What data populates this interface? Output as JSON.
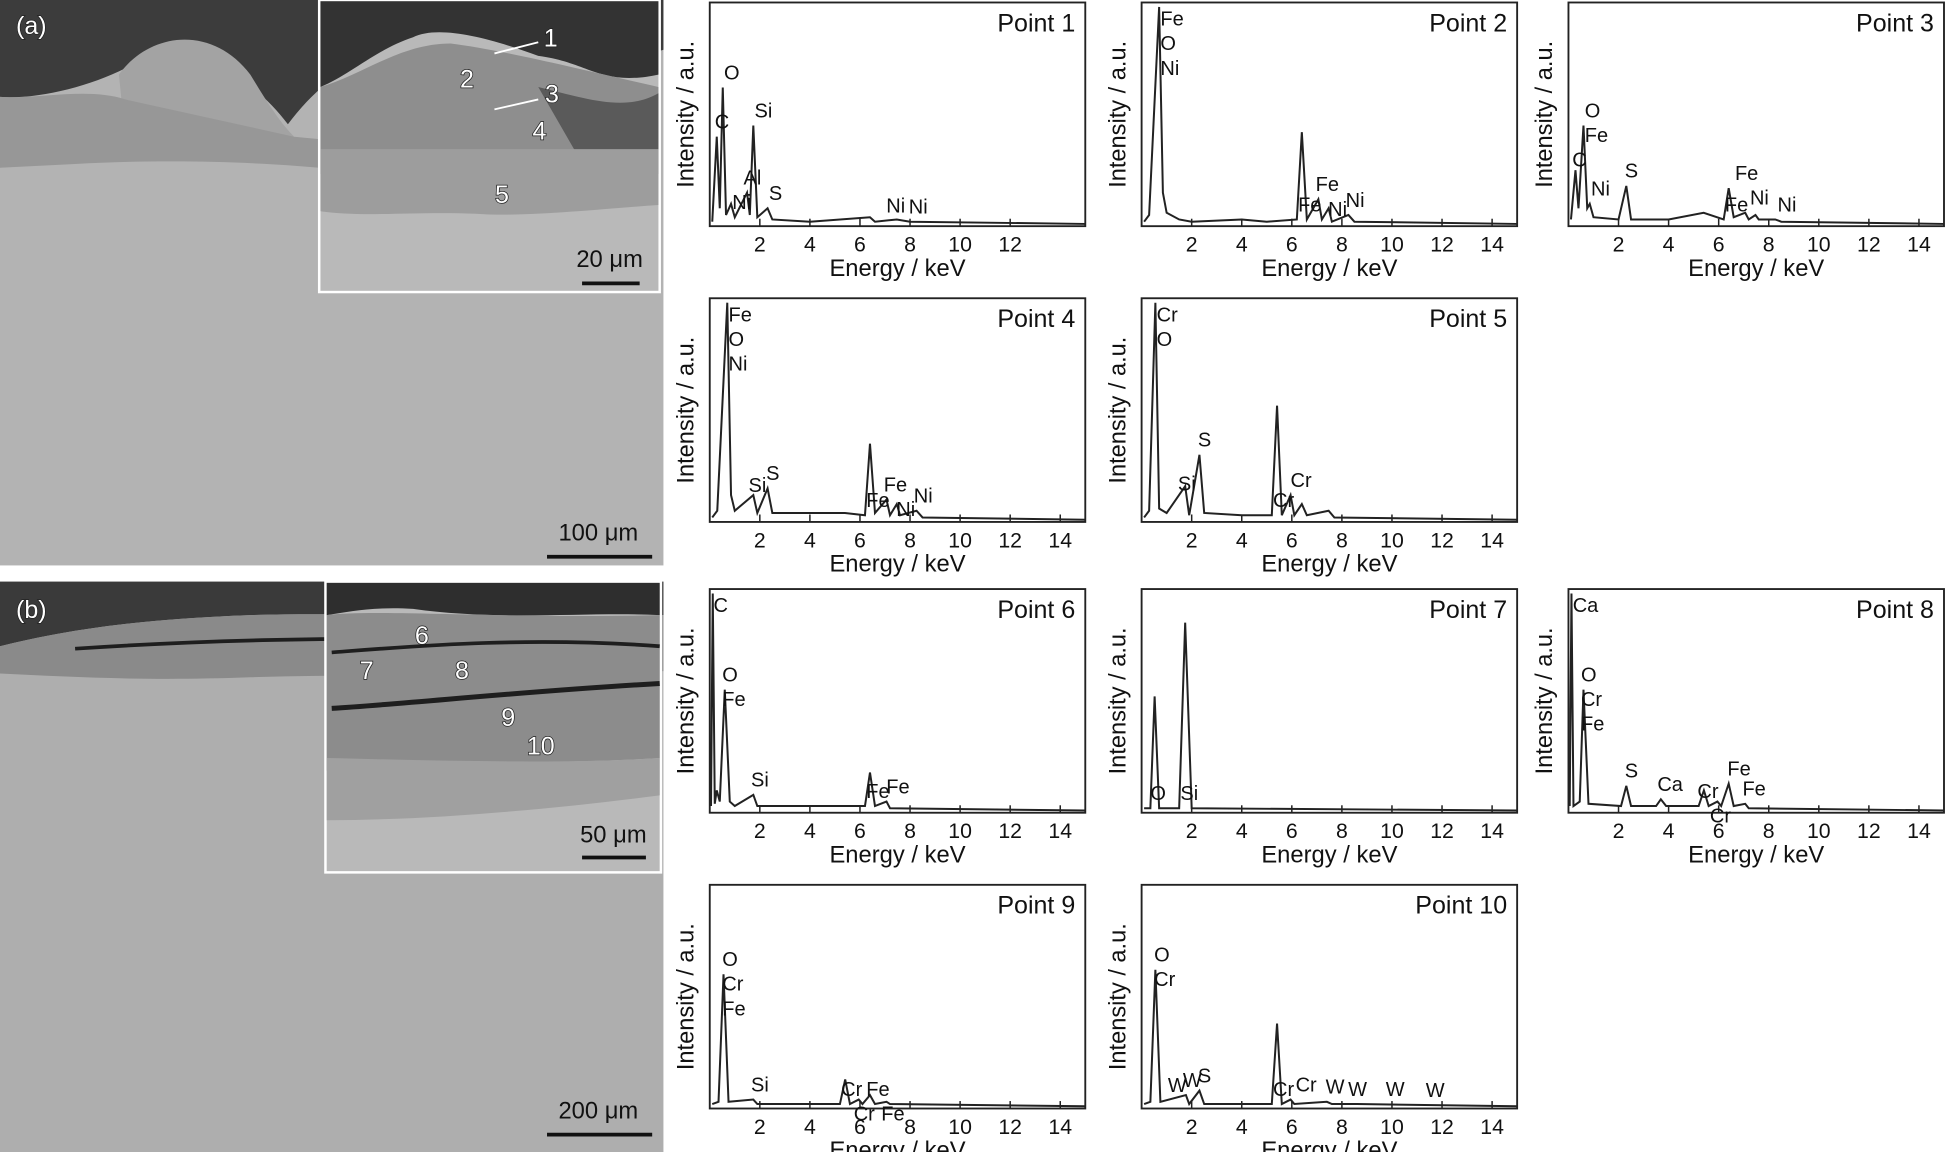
{
  "images": [
    {
      "panel": "(a)",
      "scale_bar": "100 μm",
      "inset_scale_bar": "20 μm",
      "markers": [
        "1",
        "2",
        "3",
        "4",
        "5"
      ]
    },
    {
      "panel": "(b)",
      "scale_bar": "200 μm",
      "inset_scale_bar": "50 μm",
      "markers": [
        "6",
        "7",
        "8",
        "9",
        "10"
      ]
    }
  ],
  "chart_data": [
    {
      "type": "line",
      "title": "Point 1",
      "x_label": "Energy / keV",
      "y_label": "Intensity / a.u.",
      "color": "#222222",
      "xlim": [
        0,
        15
      ],
      "xticks": [
        2,
        4,
        6,
        8,
        10,
        12
      ],
      "ylim": [
        0,
        100
      ],
      "x": [
        0.1,
        0.28,
        0.4,
        0.52,
        0.65,
        0.85,
        1.0,
        1.49,
        1.6,
        1.74,
        1.9,
        2.31,
        2.5,
        4,
        6.4,
        6.6,
        7.47,
        8,
        15
      ],
      "values": [
        2,
        40,
        8,
        62,
        5,
        10,
        4,
        15,
        5,
        45,
        4,
        8,
        3,
        2,
        4,
        2,
        3,
        2,
        1
      ],
      "annotations": [
        {
          "text": "O",
          "x": 0.52
        },
        {
          "text": "C",
          "x": 0.15
        },
        {
          "text": "Si",
          "x": 1.74
        },
        {
          "text": "Al",
          "x": 1.3
        },
        {
          "text": "Ni",
          "x": 0.85
        },
        {
          "text": "S",
          "x": 2.31
        },
        {
          "text": "Ni",
          "x": 7.0
        },
        {
          "text": "Ni",
          "x": 7.9
        }
      ]
    },
    {
      "type": "line",
      "title": "Point 2",
      "x_label": "Energy / keV",
      "y_label": "Intensity / a.u.",
      "color": "#222222",
      "xlim": [
        0,
        15
      ],
      "xticks": [
        2,
        4,
        6,
        8,
        10,
        12,
        14
      ],
      "ylim": [
        0,
        100
      ],
      "x": [
        0.1,
        0.3,
        0.7,
        0.85,
        1.0,
        1.5,
        2.0,
        4.0,
        5.0,
        6.2,
        6.4,
        6.6,
        7.06,
        7.2,
        7.47,
        7.6,
        8.26,
        8.5,
        15
      ],
      "values": [
        2,
        5,
        98,
        15,
        6,
        3,
        2,
        3,
        2,
        3,
        42,
        3,
        12,
        3,
        8,
        2,
        5,
        2,
        1
      ],
      "annotations": [
        {
          "text": "Fe",
          "x": 0.7
        },
        {
          "text": "O",
          "x": 0.7
        },
        {
          "text": "Ni",
          "x": 0.7
        },
        {
          "text": "Fe",
          "x": 6.2
        },
        {
          "text": "Fe",
          "x": 6.9
        },
        {
          "text": "Ni",
          "x": 7.4
        },
        {
          "text": "Ni",
          "x": 8.1
        }
      ]
    },
    {
      "type": "line",
      "title": "Point 3",
      "x_label": "Energy / keV",
      "y_label": "Intensity / a.u.",
      "color": "#222222",
      "xlim": [
        0,
        15
      ],
      "xticks": [
        2,
        4,
        6,
        8,
        10,
        12,
        14
      ],
      "ylim": [
        0,
        100
      ],
      "x": [
        0.1,
        0.28,
        0.4,
        0.6,
        0.75,
        0.85,
        1.0,
        2.0,
        2.31,
        2.5,
        4,
        5.4,
        6.2,
        6.4,
        6.6,
        7.06,
        7.2,
        7.47,
        7.6,
        8.26,
        8.5,
        15
      ],
      "values": [
        3,
        25,
        8,
        45,
        8,
        10,
        4,
        3,
        18,
        3,
        3,
        6,
        3,
        17,
        4,
        6,
        3,
        5,
        3,
        3,
        2,
        1
      ],
      "annotations": [
        {
          "text": "O",
          "x": 0.6
        },
        {
          "text": "Fe",
          "x": 0.6
        },
        {
          "text": "C",
          "x": 0.1
        },
        {
          "text": "Ni",
          "x": 0.85
        },
        {
          "text": "S",
          "x": 2.2
        },
        {
          "text": "Fe",
          "x": 6.2
        },
        {
          "text": "Ni",
          "x": 7.2
        },
        {
          "text": "Fe",
          "x": 6.6
        },
        {
          "text": "Ni",
          "x": 8.3
        }
      ]
    },
    {
      "type": "line",
      "title": "Point 4",
      "x_label": "Energy / keV",
      "y_label": "Intensity / a.u.",
      "color": "#222222",
      "xlim": [
        0,
        15
      ],
      "xticks": [
        2,
        4,
        6,
        8,
        10,
        12,
        14
      ],
      "ylim": [
        0,
        100
      ],
      "x": [
        0.1,
        0.3,
        0.7,
        0.85,
        1.0,
        1.74,
        1.9,
        2.31,
        2.5,
        4,
        5.4,
        6.2,
        6.4,
        6.6,
        7.06,
        7.2,
        7.47,
        7.6,
        8.26,
        8.5,
        15
      ],
      "values": [
        2,
        5,
        98,
        12,
        5,
        12,
        4,
        15,
        4,
        4,
        4,
        3,
        35,
        4,
        10,
        3,
        8,
        3,
        5,
        2,
        1
      ],
      "annotations": [
        {
          "text": "Fe",
          "x": 0.7
        },
        {
          "text": "O",
          "x": 0.7
        },
        {
          "text": "Ni",
          "x": 0.7
        },
        {
          "text": "S",
          "x": 2.2
        },
        {
          "text": "Si",
          "x": 1.5
        },
        {
          "text": "Fe",
          "x": 6.2
        },
        {
          "text": "Fe",
          "x": 6.9
        },
        {
          "text": "Ni",
          "x": 7.4
        },
        {
          "text": "Ni",
          "x": 8.1
        }
      ]
    },
    {
      "type": "line",
      "title": "Point 5",
      "x_label": "Energy / keV",
      "y_label": "Intensity / a.u.",
      "color": "#222222",
      "xlim": [
        0,
        15
      ],
      "xticks": [
        2,
        4,
        6,
        8,
        10,
        12,
        14
      ],
      "ylim": [
        0,
        100
      ],
      "x": [
        0.1,
        0.3,
        0.55,
        0.7,
        1.0,
        1.74,
        1.9,
        2.31,
        2.5,
        4,
        5.2,
        5.41,
        5.6,
        5.95,
        6.1,
        6.4,
        6.6,
        7.47,
        7.7,
        15
      ],
      "values": [
        2,
        5,
        98,
        6,
        4,
        16,
        3,
        30,
        4,
        3,
        3,
        52,
        3,
        12,
        3,
        8,
        3,
        5,
        2,
        1
      ],
      "annotations": [
        {
          "text": "Cr",
          "x": 0.55
        },
        {
          "text": "O",
          "x": 0.55
        },
        {
          "text": "S",
          "x": 2.2
        },
        {
          "text": "Si",
          "x": 1.4
        },
        {
          "text": "Cr",
          "x": 5.2
        },
        {
          "text": "Cr",
          "x": 5.9
        }
      ]
    },
    {
      "type": "line",
      "title": "Point 6",
      "x_label": "Energy / keV",
      "y_label": "Intensity / a.u.",
      "color": "#222222",
      "xlim": [
        0,
        15
      ],
      "xticks": [
        2,
        4,
        6,
        8,
        10,
        12,
        14
      ],
      "ylim": [
        0,
        100
      ],
      "x": [
        0.05,
        0.12,
        0.2,
        0.28,
        0.4,
        0.6,
        0.8,
        1.0,
        1.74,
        1.9,
        4,
        6.2,
        6.4,
        6.6,
        7.06,
        7.2,
        15
      ],
      "values": [
        3,
        98,
        4,
        10,
        5,
        55,
        5,
        3,
        8,
        3,
        3,
        3,
        18,
        3,
        5,
        2,
        1
      ],
      "annotations": [
        {
          "text": "O",
          "x": 0.45
        },
        {
          "text": "Fe",
          "x": 0.45
        },
        {
          "text": "C",
          "x": 0.1
        },
        {
          "text": "Si",
          "x": 1.6
        },
        {
          "text": "Fe",
          "x": 6.2
        },
        {
          "text": "Fe",
          "x": 7.0
        }
      ]
    },
    {
      "type": "line",
      "title": "Point 7",
      "x_label": "Energy / keV",
      "y_label": "Intensity / a.u.",
      "color": "#222222",
      "xlim": [
        0,
        15
      ],
      "xticks": [
        2,
        4,
        6,
        8,
        10,
        12,
        14
      ],
      "ylim": [
        0,
        100
      ],
      "x": [
        0.1,
        0.35,
        0.52,
        0.7,
        1.5,
        1.74,
        2.0,
        15
      ],
      "values": [
        2,
        2,
        52,
        2,
        2,
        85,
        2,
        1
      ],
      "annotations": [
        {
          "text": "O",
          "x": 0.3
        },
        {
          "text": "Si",
          "x": 1.5
        }
      ]
    },
    {
      "type": "line",
      "title": "Point 8",
      "x_label": "Energy / keV",
      "y_label": "Intensity / a.u.",
      "color": "#222222",
      "xlim": [
        0,
        15
      ],
      "xticks": [
        2,
        4,
        6,
        8,
        10,
        12,
        14
      ],
      "ylim": [
        0,
        100
      ],
      "x": [
        0.05,
        0.12,
        0.2,
        0.45,
        0.6,
        0.8,
        2.1,
        2.31,
        2.5,
        3.5,
        3.69,
        3.9,
        5.2,
        5.41,
        5.6,
        5.95,
        6.1,
        6.4,
        6.6,
        7.06,
        7.2,
        15
      ],
      "values": [
        3,
        98,
        3,
        5,
        55,
        4,
        3,
        12,
        3,
        3,
        6,
        3,
        3,
        10,
        3,
        5,
        3,
        13,
        3,
        4,
        2,
        1
      ],
      "annotations": [
        {
          "text": "Ca",
          "x": 0.12
        },
        {
          "text": "O",
          "x": 0.45
        },
        {
          "text": "Cr",
          "x": 0.45
        },
        {
          "text": "Fe",
          "x": 0.45
        },
        {
          "text": "S",
          "x": 2.2
        },
        {
          "text": "Ca",
          "x": 3.5
        },
        {
          "text": "Cr",
          "x": 5.1
        },
        {
          "text": "Cr",
          "x": 5.6
        },
        {
          "text": "Fe",
          "x": 6.3
        },
        {
          "text": "Fe",
          "x": 6.9
        }
      ]
    },
    {
      "type": "line",
      "title": "Point 9",
      "x_label": "Energy / keV",
      "y_label": "Intensity / a.u.",
      "color": "#222222",
      "xlim": [
        0,
        15
      ],
      "xticks": [
        2,
        4,
        6,
        8,
        10,
        12,
        14
      ],
      "ylim": [
        0,
        100
      ],
      "x": [
        0.1,
        0.35,
        0.55,
        0.75,
        1.74,
        1.9,
        4,
        5.2,
        5.41,
        5.6,
        5.95,
        6.1,
        6.4,
        6.6,
        7.06,
        7.2,
        15
      ],
      "values": [
        2,
        3,
        60,
        3,
        4,
        2,
        2,
        2,
        13,
        2,
        4,
        2,
        6,
        2,
        3,
        2,
        1
      ],
      "annotations": [
        {
          "text": "O",
          "x": 0.45
        },
        {
          "text": "Cr",
          "x": 0.45
        },
        {
          "text": "Fe",
          "x": 0.45
        },
        {
          "text": "Si",
          "x": 1.6
        },
        {
          "text": "Cr",
          "x": 5.2
        },
        {
          "text": "Fe",
          "x": 6.2
        },
        {
          "text": "Cr",
          "x": 5.7
        },
        {
          "text": "Fe",
          "x": 6.8
        }
      ]
    },
    {
      "type": "line",
      "title": "Point 10",
      "x_label": "Energy / keV",
      "y_label": "Intensity / a.u.",
      "color": "#222222",
      "xlim": [
        0,
        15
      ],
      "xticks": [
        2,
        4,
        6,
        8,
        10,
        12,
        14
      ],
      "ylim": [
        0,
        100
      ],
      "x": [
        0.1,
        0.35,
        0.55,
        0.75,
        1.77,
        1.9,
        2.31,
        2.5,
        4,
        5.2,
        5.41,
        5.6,
        5.95,
        6.1,
        7.4,
        7.6,
        8.4,
        8.6,
        15
      ],
      "values": [
        2,
        3,
        62,
        3,
        6,
        2,
        8,
        2,
        2,
        2,
        38,
        2,
        4,
        2,
        3,
        2,
        2,
        2,
        1
      ],
      "annotations": [
        {
          "text": "O",
          "x": 0.45
        },
        {
          "text": "Cr",
          "x": 0.45
        },
        {
          "text": "W",
          "x": 1.0
        },
        {
          "text": "W",
          "x": 1.6
        },
        {
          "text": "S",
          "x": 2.2
        },
        {
          "text": "Cr",
          "x": 5.2
        },
        {
          "text": "Cr",
          "x": 6.1
        },
        {
          "text": "W",
          "x": 7.3
        },
        {
          "text": "W",
          "x": 8.2
        },
        {
          "text": "W",
          "x": 9.7
        },
        {
          "text": "W",
          "x": 11.3
        }
      ]
    }
  ]
}
